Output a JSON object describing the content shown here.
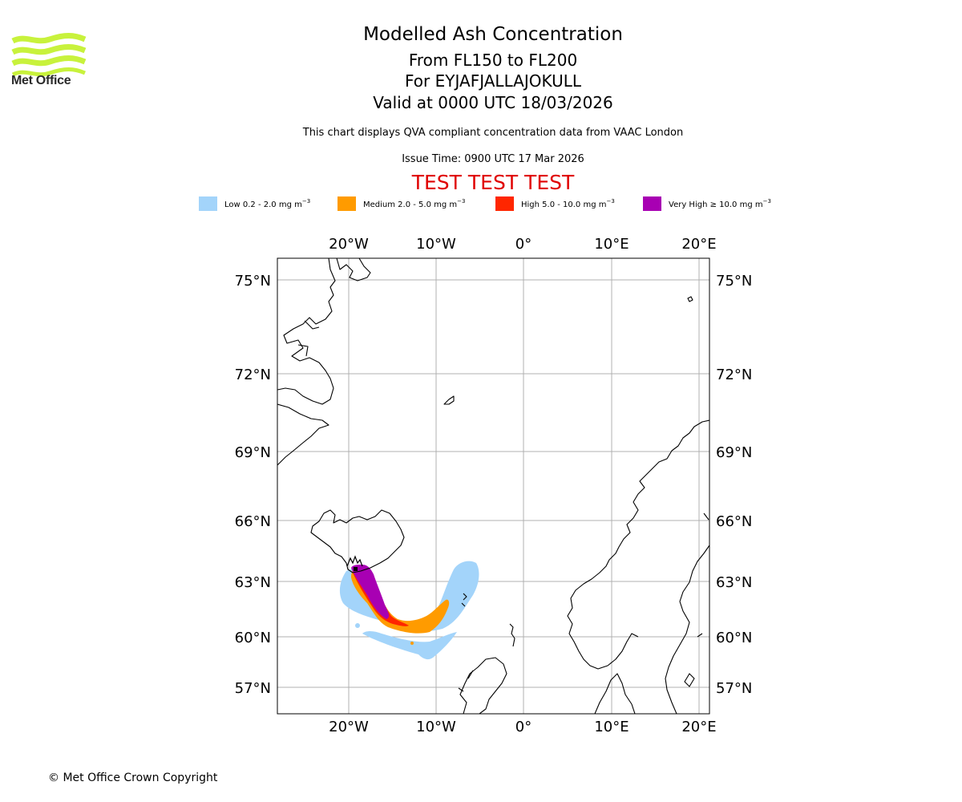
{
  "logo": {
    "text": "Met Office",
    "color": "#c8f23c"
  },
  "title": {
    "line1": "Modelled Ash Concentration",
    "line2": "From FL150 to FL200",
    "line3": "For EYJAFJALLAJOKULL",
    "line4": "Valid at 0000 UTC 18/03/2026",
    "info": "This chart displays QVA compliant concentration data from VAAC London",
    "issue": "Issue Time: 0900 UTC 17 Mar 2026",
    "test_banner": "TEST TEST TEST"
  },
  "legend": [
    {
      "label": "Low 0.2 - 2.0 mg m",
      "color": "#a3d4fa"
    },
    {
      "label": "Medium 2.0 - 5.0 mg m",
      "color": "#ff9b00"
    },
    {
      "label": "High 5.0 - 10.0 mg m",
      "color": "#ff2600"
    },
    {
      "label": "Very High  ≥  10.0 mg m",
      "color": "#a800b3"
    }
  ],
  "legend_unit_exponent": "−3",
  "axes": {
    "lon_ticks": [
      "20°W",
      "10°W",
      "0°",
      "10°E",
      "20°E"
    ],
    "lat_ticks": [
      "75°N",
      "72°N",
      "69°N",
      "66°N",
      "63°N",
      "60°N",
      "57°N"
    ]
  },
  "copyright": "© Met Office Crown Copyright"
}
